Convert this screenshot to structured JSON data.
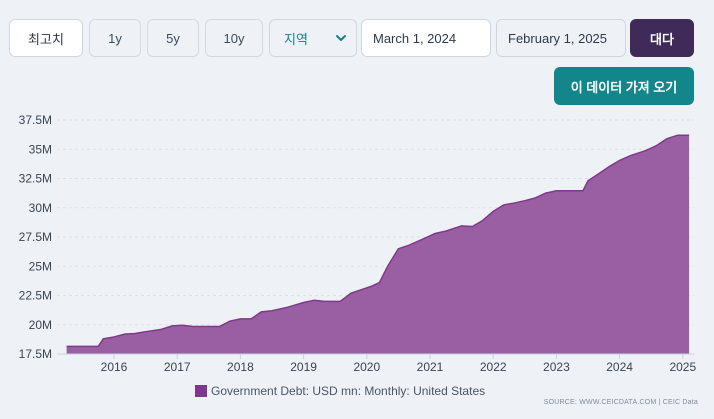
{
  "toolbar": {
    "buttons": [
      "최고치",
      "1y",
      "5y",
      "10y"
    ],
    "region_select": "지역",
    "start_date": "March 1, 2024",
    "end_date": "February 1, 2025",
    "apply_label": "대다",
    "download_label": "이 데이터 가져 오기"
  },
  "colors": {
    "area_fill": "#9a5fa3",
    "area_line": "#7d3a8c",
    "accent_teal": "#13868c",
    "apply_purple": "#3f2a59"
  },
  "source_text": "SOURCE: WWW.CEICDATA.COM | CEIC Data",
  "chart_data": {
    "type": "area",
    "title": "",
    "xlabel": "",
    "ylabel": "",
    "ylim": [
      17.5,
      37.5
    ],
    "ytick_labels": [
      "37.5M",
      "35M",
      "32.5M",
      "30M",
      "27.5M",
      "25M",
      "22.5M",
      "20M",
      "17.5M"
    ],
    "xtick_labels": [
      "2016",
      "2017",
      "2018",
      "2019",
      "2020",
      "2021",
      "2022",
      "2023",
      "2024",
      "2025"
    ],
    "grid": "horizontal",
    "legend_position": "bottom",
    "series": [
      {
        "name": "Government Debt: USD mn: Monthly: United States",
        "points": [
          [
            2015.25,
            18.15
          ],
          [
            2015.5,
            18.15
          ],
          [
            2015.75,
            18.15
          ],
          [
            2015.83,
            18.8
          ],
          [
            2016.0,
            18.95
          ],
          [
            2016.17,
            19.2
          ],
          [
            2016.33,
            19.25
          ],
          [
            2016.5,
            19.4
          ],
          [
            2016.75,
            19.6
          ],
          [
            2016.92,
            19.9
          ],
          [
            2017.08,
            19.95
          ],
          [
            2017.25,
            19.85
          ],
          [
            2017.5,
            19.85
          ],
          [
            2017.67,
            19.85
          ],
          [
            2017.83,
            20.3
          ],
          [
            2018.0,
            20.5
          ],
          [
            2018.17,
            20.5
          ],
          [
            2018.33,
            21.1
          ],
          [
            2018.5,
            21.2
          ],
          [
            2018.75,
            21.5
          ],
          [
            2019.0,
            21.9
          ],
          [
            2019.17,
            22.1
          ],
          [
            2019.33,
            22.0
          ],
          [
            2019.58,
            22.0
          ],
          [
            2019.75,
            22.7
          ],
          [
            2019.92,
            23.0
          ],
          [
            2020.08,
            23.3
          ],
          [
            2020.2,
            23.6
          ],
          [
            2020.33,
            25.0
          ],
          [
            2020.5,
            26.5
          ],
          [
            2020.67,
            26.8
          ],
          [
            2020.92,
            27.4
          ],
          [
            2021.08,
            27.8
          ],
          [
            2021.25,
            28.0
          ],
          [
            2021.5,
            28.45
          ],
          [
            2021.67,
            28.4
          ],
          [
            2021.83,
            28.9
          ],
          [
            2022.0,
            29.7
          ],
          [
            2022.17,
            30.25
          ],
          [
            2022.33,
            30.4
          ],
          [
            2022.5,
            30.6
          ],
          [
            2022.67,
            30.85
          ],
          [
            2022.83,
            31.25
          ],
          [
            2023.0,
            31.45
          ],
          [
            2023.25,
            31.45
          ],
          [
            2023.42,
            31.45
          ],
          [
            2023.5,
            32.3
          ],
          [
            2023.67,
            32.9
          ],
          [
            2023.83,
            33.5
          ],
          [
            2024.0,
            34.05
          ],
          [
            2024.17,
            34.45
          ],
          [
            2024.42,
            34.9
          ],
          [
            2024.58,
            35.3
          ],
          [
            2024.75,
            35.9
          ],
          [
            2024.92,
            36.2
          ],
          [
            2025.1,
            36.2
          ]
        ]
      }
    ]
  }
}
